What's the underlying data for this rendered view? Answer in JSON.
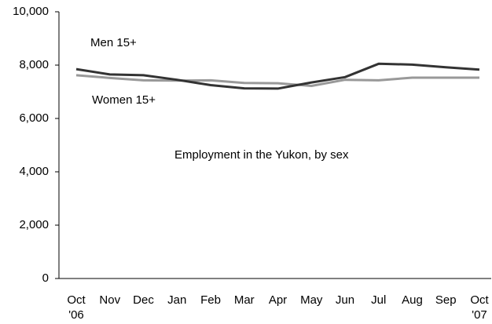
{
  "chart_data": {
    "type": "line",
    "title": "Employment in the Yukon, by sex",
    "categories": [
      "Oct\n'06",
      "Nov",
      "Dec",
      "Jan",
      "Feb",
      "Mar",
      "Apr",
      "May",
      "Jun",
      "Jul",
      "Aug",
      "Sep",
      "Oct\n'07"
    ],
    "series": [
      {
        "name": "Men 15+",
        "color": "#333333",
        "values": [
          7850,
          7650,
          7620,
          7450,
          7250,
          7130,
          7120,
          7350,
          7550,
          8050,
          8020,
          7920,
          7830
        ]
      },
      {
        "name": "Women 15+",
        "color": "#999999",
        "values": [
          7620,
          7520,
          7430,
          7420,
          7430,
          7330,
          7320,
          7220,
          7450,
          7430,
          7530,
          7530,
          7530
        ]
      }
    ],
    "ylim": [
      0,
      10000
    ],
    "yticks": [
      0,
      {
        "value": 2000,
        "label": "2,000"
      },
      {
        "value": 4000,
        "label": "4,000"
      },
      {
        "value": 6000,
        "label": "6,000"
      },
      {
        "value": 8000,
        "label": "8,000"
      },
      {
        "value": 10000,
        "label": "10,000"
      }
    ]
  }
}
